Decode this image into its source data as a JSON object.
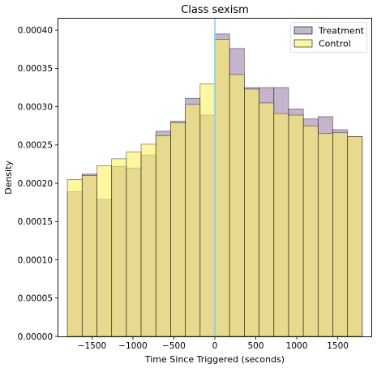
{
  "chart_data": {
    "type": "bar",
    "title": "Class sexism",
    "xlabel": "Time Since Triggered (seconds)",
    "ylabel": "Density",
    "xlim": [
      -1910,
      1910
    ],
    "ylim": [
      0,
      0.000415
    ],
    "xticks": [
      -1500,
      -1000,
      -500,
      0,
      500,
      1000,
      1500
    ],
    "xtick_labels": [
      "−1500",
      "−1000",
      "−500",
      "0",
      "500",
      "1000",
      "1500"
    ],
    "yticks": [
      0,
      5e-05,
      0.0001,
      0.00015,
      0.0002,
      0.00025,
      0.0003,
      0.00035,
      0.0004
    ],
    "ytick_labels": [
      "0.00000",
      "0.00005",
      "0.00010",
      "0.00015",
      "0.00020",
      "0.00025",
      "0.00030",
      "0.00035",
      "0.00040"
    ],
    "vline_x": 0,
    "grid": false,
    "legend_position": "top-right",
    "bin_edges": [
      -1800,
      -1620,
      -1440,
      -1260,
      -1080,
      -900,
      -720,
      -540,
      -360,
      -180,
      0,
      180,
      360,
      540,
      720,
      900,
      1080,
      1260,
      1440,
      1620,
      1800
    ],
    "series": [
      {
        "name": "Treatment",
        "color": "#8e6a9d",
        "opacity": 0.5,
        "values": [
          0.000189,
          0.000212,
          0.000179,
          0.000222,
          0.00022,
          0.000237,
          0.000268,
          0.000281,
          0.000311,
          0.000289,
          0.000395,
          0.000376,
          0.000325,
          0.000325,
          0.000325,
          0.000297,
          0.000284,
          0.000287,
          0.00027,
          0.000261
        ]
      },
      {
        "name": "Control",
        "color": "#fdf163",
        "opacity": 0.6,
        "values": [
          0.000205,
          0.00021,
          0.000223,
          0.000232,
          0.000241,
          0.000251,
          0.000262,
          0.000279,
          0.000303,
          0.00033,
          0.000388,
          0.000342,
          0.000323,
          0.000305,
          0.000291,
          0.000289,
          0.000275,
          0.000265,
          0.000266,
          0.000261
        ]
      }
    ],
    "vline_color": "#87ceeb"
  }
}
